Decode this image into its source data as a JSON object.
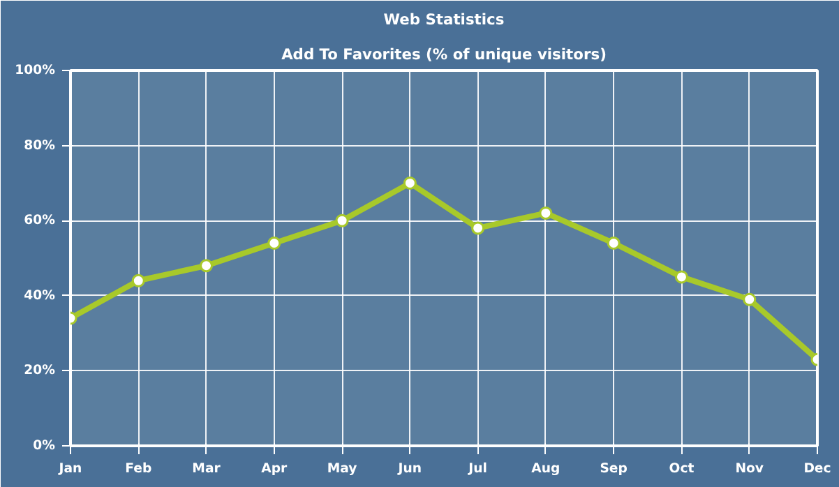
{
  "chart_data": {
    "type": "line",
    "title": "Web Statistics",
    "subtitle": "Add To Favorites (% of unique visitors)",
    "categories": [
      "Jan",
      "Feb",
      "Mar",
      "Apr",
      "May",
      "Jun",
      "Jul",
      "Aug",
      "Sep",
      "Oct",
      "Nov",
      "Dec"
    ],
    "series": [
      {
        "color": "#a8c92a",
        "values": [
          34,
          44,
          48,
          54,
          60,
          70,
          58,
          62,
          54,
          45,
          39,
          23
        ]
      }
    ],
    "ylim": [
      0,
      100
    ],
    "yticks": [
      {
        "value": 0,
        "label": "0%"
      },
      {
        "value": 20,
        "label": "20%"
      },
      {
        "value": 40,
        "label": "40%"
      },
      {
        "value": 60,
        "label": "60%"
      },
      {
        "value": 80,
        "label": "80%"
      },
      {
        "value": 100,
        "label": "100%"
      }
    ],
    "grid": true,
    "marker": "circle",
    "line_style": "solid"
  }
}
